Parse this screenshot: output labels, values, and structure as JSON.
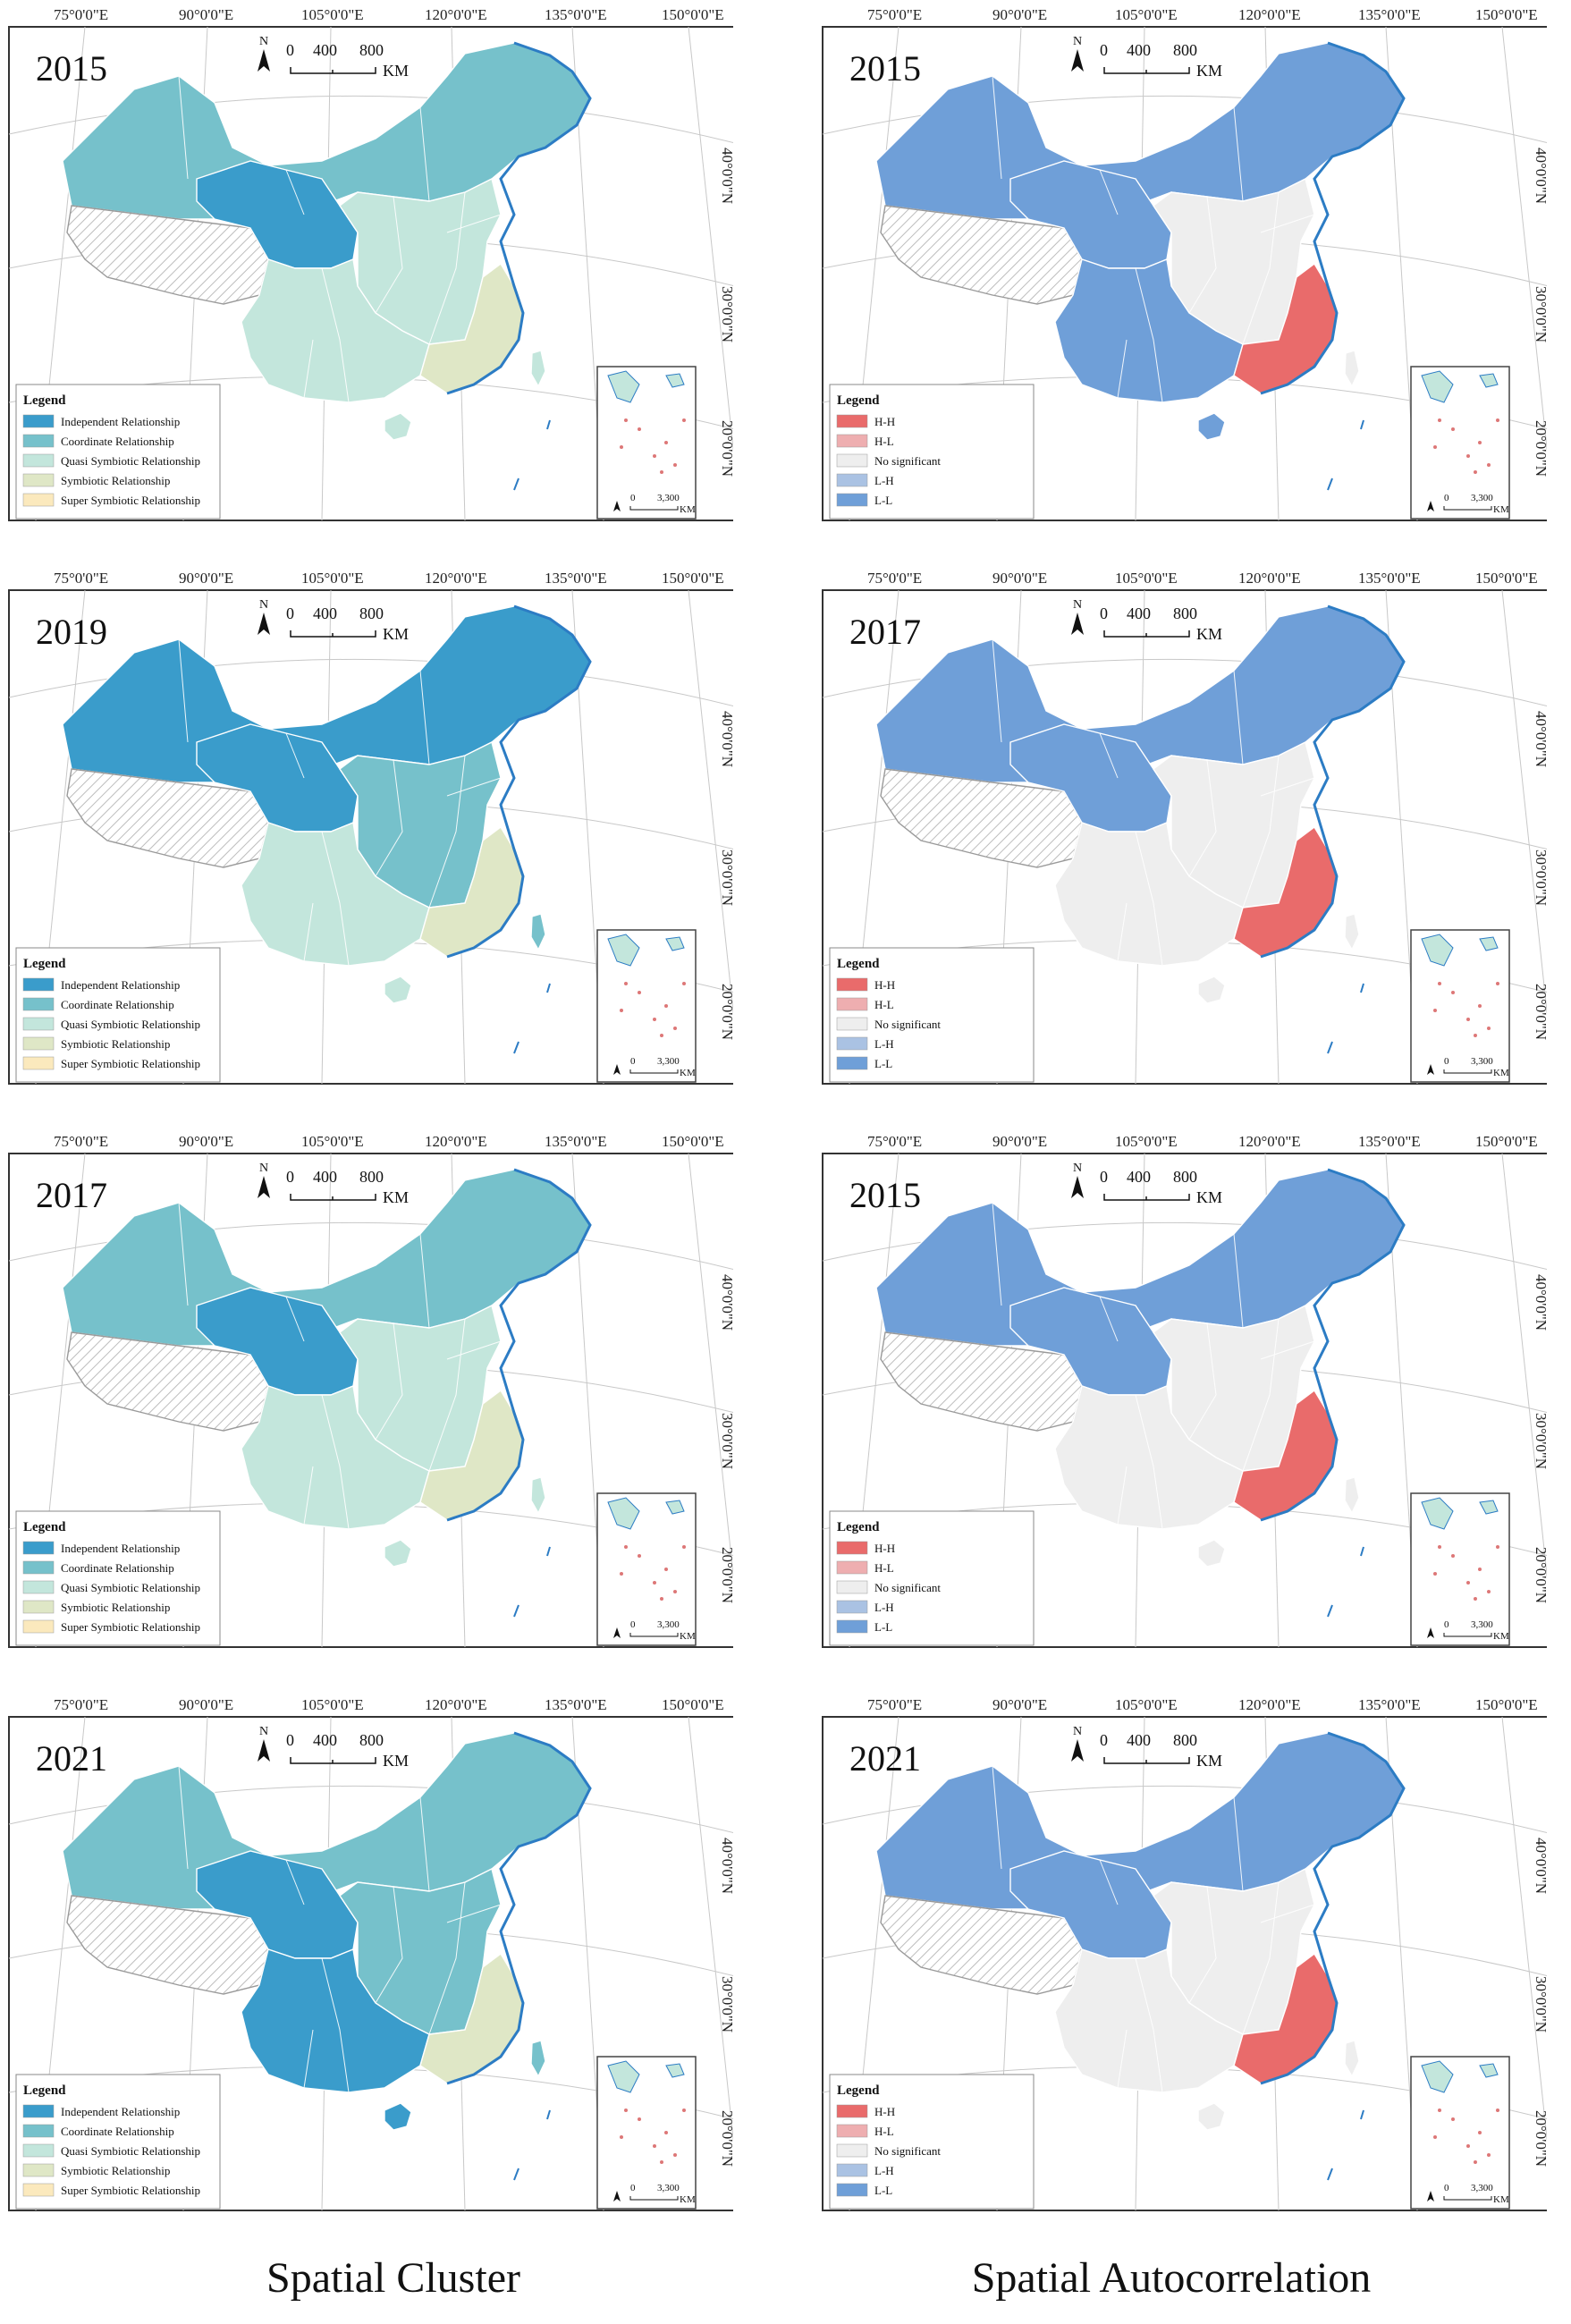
{
  "lon_labels": [
    "75°0'0\"E",
    "90°0'0\"E",
    "105°0'0\"E",
    "120°0'0\"E",
    "135°0'0\"E",
    "150°0'0\"E"
  ],
  "lat_labels": [
    "40°0'0\"N",
    "30°0'0\"N",
    "20°0'0\"N"
  ],
  "scale": {
    "north": "N",
    "ticks": [
      "0",
      "400",
      "800"
    ],
    "unit": "KM"
  },
  "inset_scale": {
    "ticks": [
      "0",
      "3,300"
    ],
    "unit": "KM"
  },
  "legend_title": "Legend",
  "cluster_legend": [
    {
      "label": "Independent Relationship",
      "color": "#3a9ccb"
    },
    {
      "label": "Coordinate Relationship",
      "color": "#76c1cb"
    },
    {
      "label": "Quasi Symbiotic Relationship",
      "color": "#c3e6dc"
    },
    {
      "label": "Symbiotic Relationship",
      "color": "#dfe7c6"
    },
    {
      "label": "Super Symbiotic Relationship",
      "color": "#fbe9bd"
    }
  ],
  "autocorr_legend": [
    {
      "label": "H-H",
      "color": "#e96b6b"
    },
    {
      "label": "H-L",
      "color": "#eeaeb0"
    },
    {
      "label": "No significant",
      "color": "#eeeeee"
    },
    {
      "label": "L-H",
      "color": "#aac2e3"
    },
    {
      "label": "L-L",
      "color": "#6f9fd8"
    }
  ],
  "panels": [
    {
      "year": "2015",
      "type": "cluster",
      "fill": {
        "north": "#76c1cb",
        "inner": "#3a9ccb",
        "east": "#c3e6dc",
        "south": "#c3e6dc",
        "coast": "#dfe7c6"
      }
    },
    {
      "year": "2015",
      "type": "autocorr",
      "fill": {
        "north": "#6f9fd8",
        "inner": "#6f9fd8",
        "east": "#eeeeee",
        "south": "#6f9fd8",
        "coast": "#e96b6b"
      }
    },
    {
      "year": "2019",
      "type": "cluster",
      "fill": {
        "north": "#3a9ccb",
        "inner": "#3a9ccb",
        "east": "#76c1cb",
        "south": "#c3e6dc",
        "coast": "#dfe7c6"
      }
    },
    {
      "year": "2017",
      "type": "autocorr",
      "fill": {
        "north": "#6f9fd8",
        "inner": "#6f9fd8",
        "east": "#eeeeee",
        "south": "#eeeeee",
        "coast": "#e96b6b"
      }
    },
    {
      "year": "2017",
      "type": "cluster",
      "fill": {
        "north": "#76c1cb",
        "inner": "#3a9ccb",
        "east": "#c3e6dc",
        "south": "#c3e6dc",
        "coast": "#dfe7c6"
      }
    },
    {
      "year": "2015",
      "type": "autocorr",
      "fill": {
        "north": "#6f9fd8",
        "inner": "#6f9fd8",
        "east": "#eeeeee",
        "south": "#eeeeee",
        "coast": "#e96b6b"
      }
    },
    {
      "year": "2021",
      "type": "cluster",
      "fill": {
        "north": "#76c1cb",
        "inner": "#3a9ccb",
        "east": "#76c1cb",
        "south": "#3a9ccb",
        "coast": "#dfe7c6"
      }
    },
    {
      "year": "2021",
      "type": "autocorr",
      "fill": {
        "north": "#6f9fd8",
        "inner": "#6f9fd8",
        "east": "#eeeeee",
        "south": "#eeeeee",
        "coast": "#e96b6b"
      }
    }
  ],
  "column_titles": {
    "left": "Spatial Cluster",
    "right": "Spatial Autocorrelation"
  }
}
